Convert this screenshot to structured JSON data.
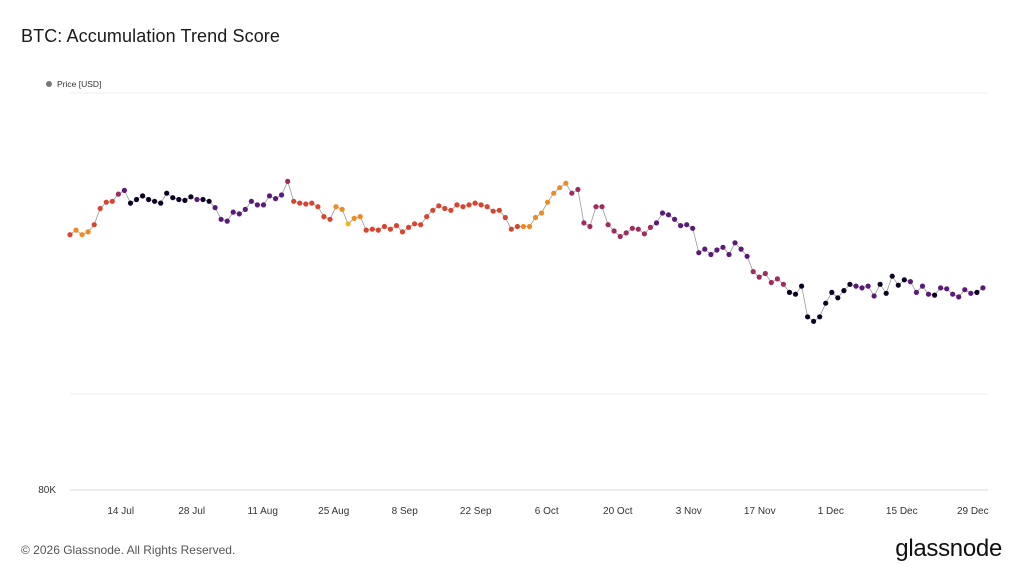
{
  "header": {
    "title": "BTC: Accumulation Trend Score"
  },
  "legend": {
    "label": "Price [USD]",
    "marker_color": "#777777"
  },
  "footer": {
    "copyright": "© 2026 Glassnode. All Rights Reserved.",
    "brand": "glassnode"
  },
  "chart_data": {
    "type": "scatter",
    "title": "BTC: Accumulation Trend Score",
    "ylabel": "",
    "xlabel": "",
    "y_tick_labels": [
      {
        "value": 80000,
        "label": "80K"
      }
    ],
    "ylim": [
      80000,
      124000
    ],
    "grid": true,
    "legend_position": "top-left",
    "x_tick_labels": [
      "14 Jul",
      "28 Jul",
      "11 Aug",
      "25 Aug",
      "8 Sep",
      "22 Sep",
      "6 Oct",
      "20 Oct",
      "3 Nov",
      "17 Nov",
      "1 Dec",
      "15 Dec",
      "29 Dec"
    ],
    "x_start": "2025-07-04",
    "x_end": "2026-01-01",
    "color_scale": [
      "#0d0221",
      "#5b1a7a",
      "#a32a5e",
      "#d8452f",
      "#f08a20",
      "#f6b319"
    ],
    "series": [
      {
        "values": [
          [
            108300,
            3
          ],
          [
            108800,
            4
          ],
          [
            108300,
            4
          ],
          [
            108600,
            4
          ],
          [
            109400,
            3
          ],
          [
            111200,
            3
          ],
          [
            111900,
            3
          ],
          [
            112000,
            3
          ],
          [
            112800,
            2
          ],
          [
            113200,
            1
          ],
          [
            111800,
            0
          ],
          [
            112200,
            0
          ],
          [
            112600,
            0
          ],
          [
            112200,
            0
          ],
          [
            112000,
            0
          ],
          [
            111800,
            0
          ],
          [
            112900,
            0
          ],
          [
            112400,
            0
          ],
          [
            112200,
            0
          ],
          [
            112100,
            0
          ],
          [
            112500,
            0
          ],
          [
            112200,
            1
          ],
          [
            112200,
            0
          ],
          [
            112000,
            0
          ],
          [
            111300,
            1
          ],
          [
            110000,
            1
          ],
          [
            109800,
            1
          ],
          [
            110800,
            1
          ],
          [
            110600,
            1
          ],
          [
            111100,
            1
          ],
          [
            112000,
            1
          ],
          [
            111600,
            1
          ],
          [
            111600,
            1
          ],
          [
            112600,
            1
          ],
          [
            112300,
            1
          ],
          [
            112700,
            1
          ],
          [
            114200,
            2
          ],
          [
            112000,
            3
          ],
          [
            111800,
            3
          ],
          [
            111700,
            3
          ],
          [
            111800,
            3
          ],
          [
            111400,
            3
          ],
          [
            110300,
            3
          ],
          [
            110000,
            3
          ],
          [
            111400,
            4
          ],
          [
            111100,
            4
          ],
          [
            109500,
            5
          ],
          [
            110100,
            4
          ],
          [
            110300,
            4
          ],
          [
            108800,
            3
          ],
          [
            108900,
            3
          ],
          [
            108800,
            3
          ],
          [
            109200,
            3
          ],
          [
            108900,
            3
          ],
          [
            109300,
            3
          ],
          [
            108600,
            3
          ],
          [
            109100,
            3
          ],
          [
            109500,
            3
          ],
          [
            109400,
            3
          ],
          [
            110300,
            3
          ],
          [
            111000,
            3
          ],
          [
            111500,
            3
          ],
          [
            111200,
            3
          ],
          [
            111000,
            3
          ],
          [
            111600,
            3
          ],
          [
            111400,
            3
          ],
          [
            111600,
            3
          ],
          [
            111800,
            3
          ],
          [
            111600,
            3
          ],
          [
            111400,
            3
          ],
          [
            110900,
            3
          ],
          [
            111000,
            3
          ],
          [
            110200,
            3
          ],
          [
            108900,
            3
          ],
          [
            109200,
            3
          ],
          [
            109200,
            4
          ],
          [
            109200,
            4
          ],
          [
            110200,
            4
          ],
          [
            110700,
            4
          ],
          [
            111900,
            4
          ],
          [
            112900,
            4
          ],
          [
            113500,
            4
          ],
          [
            114000,
            4
          ],
          [
            112900,
            2
          ],
          [
            113300,
            2
          ],
          [
            109600,
            2
          ],
          [
            109200,
            2
          ],
          [
            111400,
            2
          ],
          [
            111400,
            2
          ],
          [
            109400,
            2
          ],
          [
            108700,
            2
          ],
          [
            108100,
            2
          ],
          [
            108500,
            2
          ],
          [
            109000,
            2
          ],
          [
            108900,
            2
          ],
          [
            108400,
            2
          ],
          [
            109100,
            2
          ],
          [
            109600,
            1
          ],
          [
            110700,
            1
          ],
          [
            110500,
            1
          ],
          [
            110000,
            1
          ],
          [
            109300,
            1
          ],
          [
            109400,
            1
          ],
          [
            109000,
            1
          ],
          [
            106300,
            1
          ],
          [
            106700,
            1
          ],
          [
            106100,
            1
          ],
          [
            106600,
            1
          ],
          [
            106900,
            1
          ],
          [
            106100,
            1
          ],
          [
            107400,
            1
          ],
          [
            106700,
            1
          ],
          [
            105900,
            1
          ],
          [
            104200,
            2
          ],
          [
            103600,
            2
          ],
          [
            104000,
            2
          ],
          [
            103000,
            2
          ],
          [
            103400,
            2
          ],
          [
            102800,
            2
          ],
          [
            101900,
            0
          ],
          [
            101700,
            0
          ],
          [
            102600,
            0
          ],
          [
            99200,
            0
          ],
          [
            98700,
            0
          ],
          [
            99200,
            0
          ],
          [
            100700,
            0
          ],
          [
            101900,
            0
          ],
          [
            101300,
            0
          ],
          [
            102100,
            0
          ],
          [
            102800,
            0
          ],
          [
            102600,
            1
          ],
          [
            102400,
            1
          ],
          [
            102600,
            1
          ],
          [
            101500,
            1
          ],
          [
            102800,
            0
          ],
          [
            101800,
            0
          ],
          [
            103700,
            0
          ],
          [
            102700,
            0
          ],
          [
            103300,
            0
          ],
          [
            103100,
            1
          ],
          [
            101900,
            1
          ],
          [
            102600,
            1
          ],
          [
            101700,
            1
          ],
          [
            101600,
            0
          ],
          [
            102400,
            1
          ],
          [
            102300,
            1
          ],
          [
            101700,
            1
          ],
          [
            101400,
            1
          ],
          [
            102200,
            1
          ],
          [
            101800,
            1
          ],
          [
            101900,
            0
          ],
          [
            102400,
            1
          ]
        ]
      }
    ]
  }
}
